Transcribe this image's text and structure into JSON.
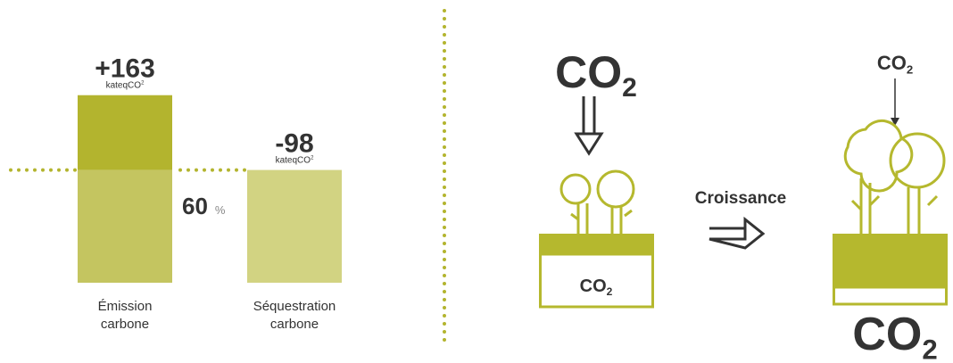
{
  "left": {
    "bars": [
      {
        "value": 163,
        "label": "+163",
        "unit": "kateqCO",
        "unit_sup": "2",
        "name": [
          "Émission",
          "carbone"
        ]
      },
      {
        "value": -98,
        "label": "-98",
        "unit": "kateqCO",
        "unit_sup": "2",
        "name": [
          "Séquestration",
          "carbone"
        ]
      }
    ],
    "share": {
      "value": 60,
      "unit": "%"
    }
  },
  "right": {
    "before": {
      "top": {
        "main": "CO",
        "sub": "2"
      },
      "soil": {
        "main": "CO",
        "sub": "2"
      }
    },
    "arrow_label": "Croissance",
    "after": {
      "top": {
        "main": "CO",
        "sub": "2"
      },
      "soil": {
        "main": "CO",
        "sub": "2"
      }
    }
  }
}
